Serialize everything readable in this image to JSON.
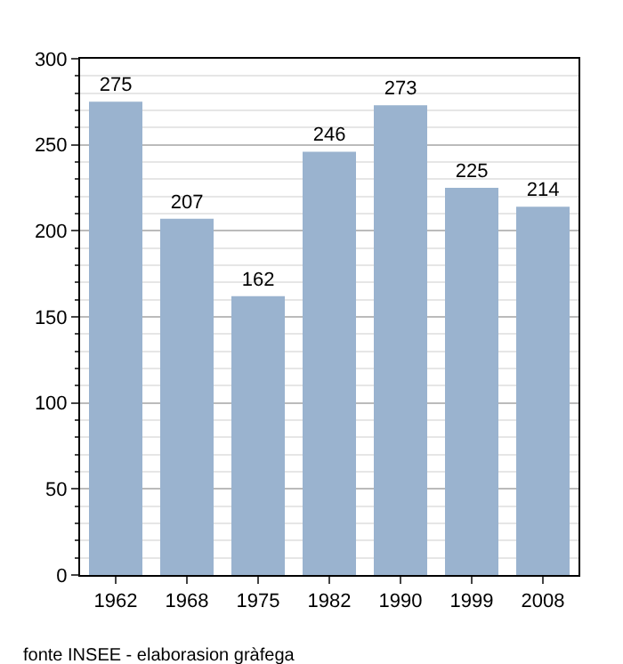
{
  "chart_data": {
    "type": "bar",
    "categories": [
      "1962",
      "1968",
      "1975",
      "1982",
      "1990",
      "1999",
      "2008"
    ],
    "values": [
      275,
      207,
      162,
      246,
      273,
      225,
      214
    ],
    "color": "#9ab3cf",
    "ylim": [
      0,
      300
    ],
    "yticks": [
      0,
      50,
      100,
      150,
      200,
      250,
      300
    ],
    "grid": "y",
    "data_labels": true,
    "annotations": [
      "fonte INSEE - elaborasion gràfega"
    ]
  }
}
